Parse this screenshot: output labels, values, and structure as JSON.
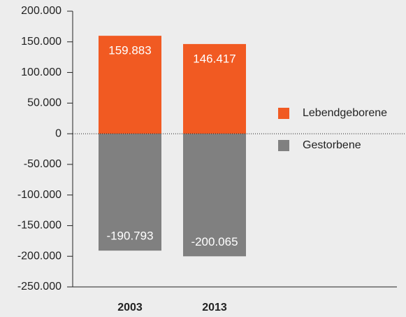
{
  "chart_data": {
    "type": "bar",
    "stacked": true,
    "categories": [
      "2003",
      "2013"
    ],
    "series": [
      {
        "name": "Lebendgeborene",
        "color": "#f15a22",
        "values": [
          159883,
          146417
        ],
        "value_labels": [
          "159.883",
          "146.417"
        ]
      },
      {
        "name": "Gestorbene",
        "color": "#808080",
        "values": [
          -190793,
          -200065
        ],
        "value_labels": [
          "-190.793",
          "-200.065"
        ]
      }
    ],
    "ylim": [
      -250000,
      200000
    ],
    "yticks": [
      {
        "value": -250000,
        "label": "-250.000"
      },
      {
        "value": -200000,
        "label": "-200.000"
      },
      {
        "value": -150000,
        "label": "-150.000"
      },
      {
        "value": -100000,
        "label": "-100.000"
      },
      {
        "value": -50000,
        "label": "-50.000"
      },
      0,
      {
        "value": 50000,
        "label": "50.000"
      },
      {
        "value": 100000,
        "label": "100.000"
      },
      {
        "value": 150000,
        "label": "150.000"
      },
      {
        "value": 200000,
        "label": "200.000"
      }
    ],
    "legend": "right"
  }
}
